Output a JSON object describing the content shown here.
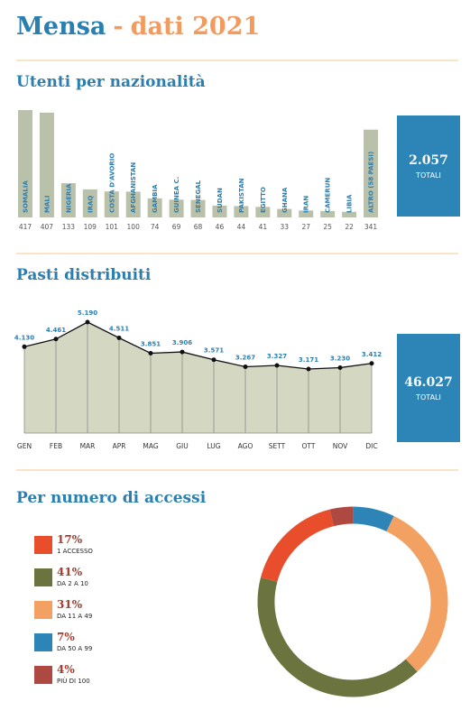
{
  "header": {
    "name": "Mensa",
    "separator": "-",
    "year": "dati 2021"
  },
  "chart_data": [
    {
      "type": "bar",
      "title": "Utenti per nazionalità",
      "categories": [
        "SOMALIA",
        "MALI",
        "NIGERIA",
        "IRAQ",
        "COSTA D'AVORIO",
        "AFGHANISTAN",
        "GAMBIA",
        "GUINEA C.",
        "SENEGAL",
        "SUDAN",
        "PAKISTAN",
        "EGITTO",
        "GHANA",
        "IRAN",
        "CAMERUN",
        "LIBIA",
        "ALTRO (58 PAESI)"
      ],
      "values": [
        417,
        407,
        133,
        109,
        101,
        100,
        74,
        69,
        68,
        46,
        44,
        41,
        33,
        27,
        25,
        22,
        341
      ],
      "color": "#b9c1ab",
      "label_color": "#2a7fb0",
      "total": {
        "value": 2057,
        "label": "2.057"
      },
      "total_label": "TOTALI"
    },
    {
      "type": "area",
      "title": "Pasti distribuiti",
      "categories": [
        "GEN",
        "FEB",
        "MAR",
        "APR",
        "MAG",
        "GIU",
        "LUG",
        "AGO",
        "SETT",
        "OTT",
        "NOV",
        "DIC"
      ],
      "values": [
        4130,
        4461,
        5190,
        4511,
        3851,
        3906,
        3571,
        3267,
        3327,
        3171,
        3230,
        3412
      ],
      "value_labels": [
        "4.130",
        "4.461",
        "5.190",
        "4.511",
        "3.851",
        "3.906",
        "3.571",
        "3.267",
        "3.327",
        "3.171",
        "3.230",
        "3.412"
      ],
      "color": "#d4d8c3",
      "total": {
        "value": 46027,
        "label": "46.027"
      },
      "total_label": "TOTALI"
    },
    {
      "type": "donut",
      "title": "Per numero di accessi",
      "categories": [
        "1 ACCESSO",
        "DA 2 A 10",
        "DA 11 A 49",
        "DA 50 A 99",
        "PIÙ DI 100"
      ],
      "values": [
        17,
        41,
        31,
        7,
        4
      ],
      "value_labels": [
        "17%",
        "41%",
        "31%",
        "7%",
        "4%"
      ],
      "colors": [
        "#e84d2c",
        "#6b733f",
        "#f3a063",
        "#2d85b7",
        "#ae4942"
      ]
    }
  ]
}
